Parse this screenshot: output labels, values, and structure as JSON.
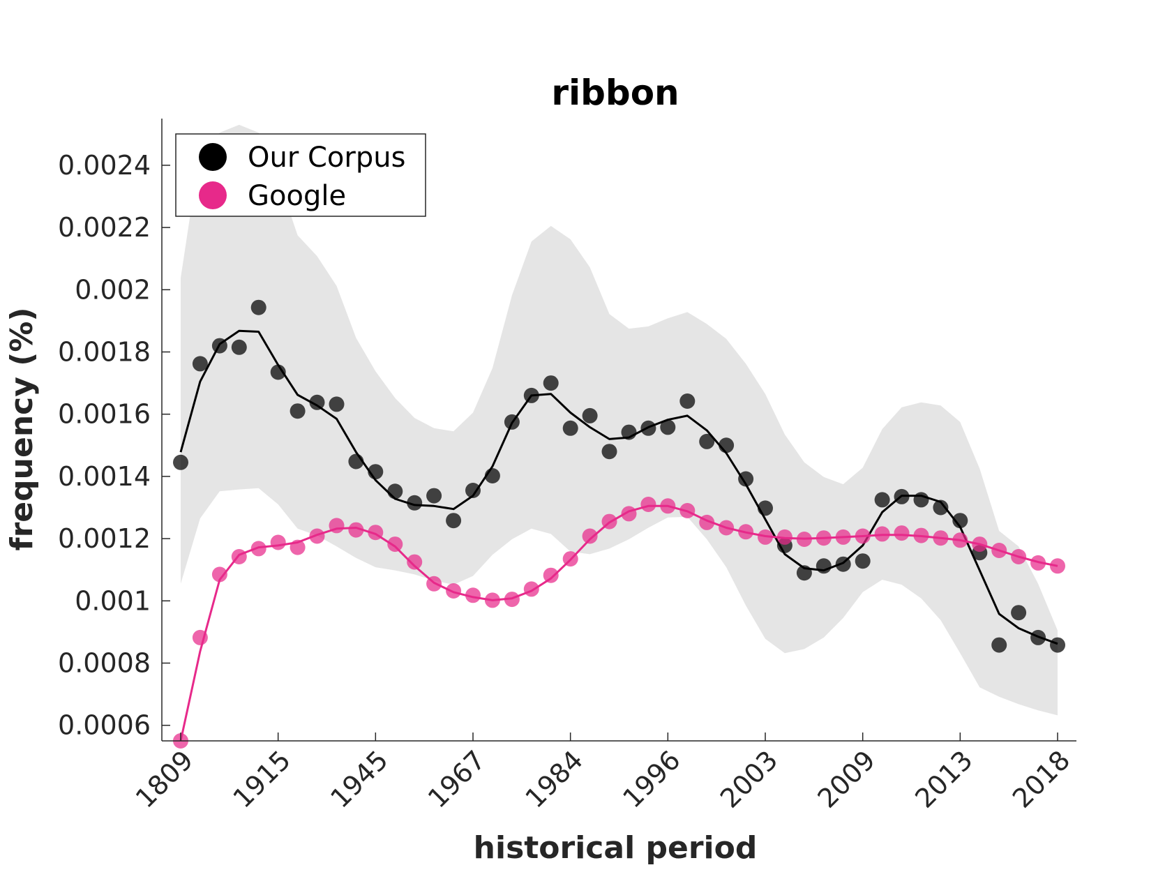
{
  "chart_data": {
    "type": "line",
    "title": "ribbon",
    "xlabel": "historical period",
    "ylabel": "frequency (%)",
    "x_tick_labels": [
      "1809",
      "1915",
      "1945",
      "1967",
      "1984",
      "1996",
      "2003",
      "2009",
      "2013",
      "2018"
    ],
    "ylim": [
      0.00055,
      0.00255
    ],
    "y_ticks": [
      0.0006,
      0.0008,
      0.001,
      0.0012,
      0.0014,
      0.0016,
      0.0018,
      0.002,
      0.0022,
      0.0024
    ],
    "y_tick_labels": [
      "0.0006",
      "0.0008",
      "0.001",
      "0.0012",
      "0.0014",
      "0.0016",
      "0.0018",
      "0.002",
      "0.0022",
      "0.0024"
    ],
    "legend": {
      "position": "top-left"
    },
    "colors": {
      "corpus": "#000000",
      "google": "#e7298a",
      "band": "#e5e5e5"
    },
    "series": [
      {
        "name": "Our Corpus",
        "points": [
          0.001445,
          0.001762,
          0.00182,
          0.001815,
          0.001943,
          0.001735,
          0.00161,
          0.001638,
          0.001632,
          0.001448,
          0.001415,
          0.001352,
          0.001315,
          0.001338,
          0.001258,
          0.001355,
          0.001402,
          0.001575,
          0.00166,
          0.0017,
          0.001555,
          0.001595,
          0.00148,
          0.001542,
          0.001555,
          0.001558,
          0.001642,
          0.001512,
          0.0015,
          0.001392,
          0.001298,
          0.001178,
          0.00109,
          0.001112,
          0.001118,
          0.001128,
          0.001325,
          0.001335,
          0.001325,
          0.0013,
          0.001258,
          0.001155,
          0.000858,
          0.000962,
          0.000882,
          0.000858
        ],
        "smooth": [
          0.001478,
          0.001705,
          0.001825,
          0.001868,
          0.001865,
          0.001758,
          0.001662,
          0.001628,
          0.001585,
          0.001478,
          0.001388,
          0.001328,
          0.001308,
          0.001305,
          0.001295,
          0.001338,
          0.001432,
          0.001572,
          0.00166,
          0.001665,
          0.001605,
          0.001558,
          0.00152,
          0.001525,
          0.001558,
          0.001582,
          0.001595,
          0.001548,
          0.001475,
          0.001375,
          0.001262,
          0.00115,
          0.001105,
          0.001098,
          0.001122,
          0.001178,
          0.001285,
          0.001338,
          0.001338,
          0.001318,
          0.001238,
          0.001098,
          0.000958,
          0.000912,
          0.000885,
          0.000862
        ],
        "band_upper": [
          0.002038,
          0.00245,
          0.002505,
          0.00253,
          0.002505,
          0.00236,
          0.002175,
          0.002108,
          0.002012,
          0.001845,
          0.001738,
          0.001652,
          0.001588,
          0.001555,
          0.001545,
          0.001605,
          0.001748,
          0.001982,
          0.002155,
          0.002205,
          0.002162,
          0.002072,
          0.001922,
          0.001875,
          0.001882,
          0.001908,
          0.001928,
          0.00189,
          0.001842,
          0.001762,
          0.001665,
          0.001535,
          0.001445,
          0.001398,
          0.001375,
          0.001428,
          0.001552,
          0.001622,
          0.001638,
          0.001628,
          0.001575,
          0.001425,
          0.001225,
          0.001175,
          0.001055,
          0.000905
        ],
        "band_lower": [
          0.001055,
          0.001265,
          0.001352,
          0.001358,
          0.001362,
          0.00131,
          0.001232,
          0.00121,
          0.001175,
          0.001138,
          0.001108,
          0.001098,
          0.001085,
          0.001065,
          0.001052,
          0.00108,
          0.001148,
          0.001198,
          0.001232,
          0.001215,
          0.001158,
          0.00115,
          0.001168,
          0.001198,
          0.001235,
          0.001268,
          0.00127,
          0.001198,
          0.001108,
          0.000985,
          0.000878,
          0.000832,
          0.000845,
          0.000882,
          0.000945,
          0.001028,
          0.001068,
          0.001052,
          0.001008,
          0.000938,
          0.000832,
          0.000722,
          0.000692,
          0.000668,
          0.000648,
          0.000632
        ]
      },
      {
        "name": "Google",
        "points": [
          0.00055,
          0.000882,
          0.001085,
          0.001142,
          0.001168,
          0.001188,
          0.001172,
          0.001208,
          0.001242,
          0.001228,
          0.00122,
          0.001182,
          0.001125,
          0.001055,
          0.001032,
          0.001018,
          0.001002,
          0.001005,
          0.001038,
          0.001082,
          0.001135,
          0.001208,
          0.001255,
          0.00128,
          0.00131,
          0.001305,
          0.00129,
          0.001252,
          0.001235,
          0.001222,
          0.001205,
          0.001205,
          0.001198,
          0.001202,
          0.001205,
          0.001208,
          0.001215,
          0.001218,
          0.00121,
          0.001202,
          0.001195,
          0.001182,
          0.001162,
          0.001142,
          0.001122,
          0.001112
        ],
        "smooth": [
          0.00055,
          0.000838,
          0.001068,
          0.001148,
          0.001172,
          0.001178,
          0.001188,
          0.001212,
          0.001232,
          0.001235,
          0.001215,
          0.001175,
          0.001112,
          0.001058,
          0.001028,
          0.001012,
          0.001002,
          0.001008,
          0.001032,
          0.001072,
          0.001132,
          0.001198,
          0.001252,
          0.001288,
          0.001305,
          0.001305,
          0.001288,
          0.001258,
          0.001235,
          0.00122,
          0.001208,
          0.001202,
          0.0012,
          0.001202,
          0.001205,
          0.001208,
          0.001212,
          0.001212,
          0.001208,
          0.001202,
          0.001195,
          0.001182,
          0.001162,
          0.001142,
          0.001125,
          0.001112
        ]
      }
    ]
  }
}
